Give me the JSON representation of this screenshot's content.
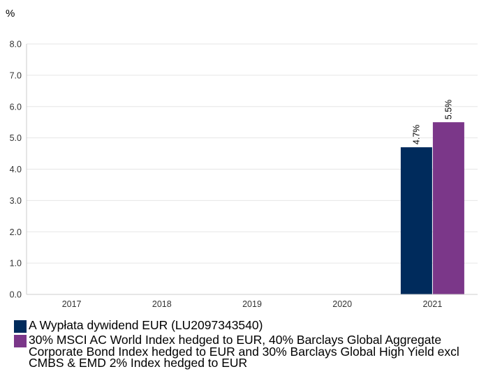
{
  "chart_data": {
    "type": "bar",
    "unit_label": "%",
    "categories": [
      "2017",
      "2018",
      "2019",
      "2020",
      "2021"
    ],
    "series": [
      {
        "name": "A Wypłata dywidend EUR (LU2097343540)",
        "color": "#002b5c",
        "values": [
          null,
          null,
          null,
          null,
          4.7
        ],
        "labels": [
          "",
          "",
          "",
          "",
          "4.7%"
        ]
      },
      {
        "name": "30% MSCI AC World Index hedged to EUR, 40% Barclays Global Aggregate Corporate Bond Index hedged to EUR and 30% Barclays Global High Yield excl CMBS & EMD 2% Index hedged to EUR",
        "color": "#7b3789",
        "values": [
          null,
          null,
          null,
          null,
          5.5
        ],
        "labels": [
          "",
          "",
          "",
          "",
          "5.5%"
        ]
      }
    ],
    "ylim": [
      0,
      8
    ],
    "yticks": [
      "0.0",
      "1.0",
      "2.0",
      "3.0",
      "4.0",
      "5.0",
      "6.0",
      "7.0",
      "8.0"
    ],
    "ytick_values": [
      0,
      1,
      2,
      3,
      4,
      5,
      6,
      7,
      8
    ],
    "grid": true,
    "legend_position": "bottom"
  },
  "colors": {
    "gridline": "#e6e6e6",
    "axis": "#cccccc"
  }
}
